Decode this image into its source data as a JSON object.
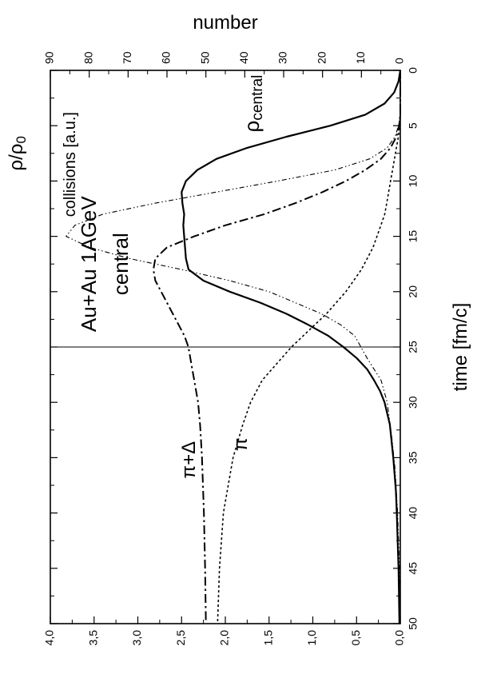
{
  "chart_data": {
    "type": "line",
    "orientation": "rotated-90-cw",
    "x_axis": {
      "label": "time   [fm/c]",
      "range": [
        0,
        50
      ],
      "ticks": [
        "0",
        "5",
        "10",
        "15",
        "20",
        "25",
        "30",
        "35",
        "40",
        "45",
        "50"
      ]
    },
    "y_left_axis": {
      "label": "ρ/ρ",
      "label_sub": "0",
      "range": [
        0,
        4
      ],
      "ticks": [
        "0,0",
        "0,5",
        "1,0",
        "1,5",
        "2,0",
        "2,5",
        "3,0",
        "3,5",
        "4,0"
      ]
    },
    "y_right_axis": {
      "label": "number",
      "range": [
        0,
        90
      ],
      "ticks": [
        "0",
        "10",
        "20",
        "30",
        "40",
        "50",
        "60",
        "70",
        "80",
        "90"
      ]
    },
    "vertical_line_x": 25,
    "annotations": {
      "title_line1": "Au+Au 1AGeV",
      "title_line2": "central",
      "collisions": "collisions [a.u.]",
      "rho_main": "ρ",
      "rho_sub": "central",
      "pi_delta": "π+Δ",
      "pi": "π"
    },
    "series": [
      {
        "style": "solid",
        "axis": "left",
        "x": [
          0,
          1,
          2,
          3,
          4,
          5,
          6,
          7,
          8,
          9,
          10,
          11,
          12,
          13,
          14,
          15,
          16,
          17,
          18,
          19,
          20,
          21,
          22,
          23,
          24,
          25,
          26,
          27,
          28,
          29,
          30,
          32,
          35,
          38,
          40,
          45,
          50
        ],
        "y": [
          0.0,
          0.02,
          0.07,
          0.18,
          0.4,
          0.8,
          1.3,
          1.75,
          2.1,
          2.32,
          2.45,
          2.5,
          2.49,
          2.47,
          2.48,
          2.47,
          2.46,
          2.45,
          2.42,
          2.25,
          1.95,
          1.6,
          1.3,
          1.05,
          0.82,
          0.65,
          0.5,
          0.38,
          0.3,
          0.23,
          0.18,
          0.12,
          0.08,
          0.05,
          0.04,
          0.02,
          0.01
        ]
      },
      {
        "style": "dash-dot-dot",
        "axis": "left",
        "x": [
          0,
          4,
          5,
          6,
          7,
          8,
          9,
          10,
          11,
          12,
          13,
          14,
          15,
          16,
          17,
          18,
          19,
          20,
          21,
          22,
          23,
          24,
          25,
          26,
          27,
          28,
          30,
          33,
          36,
          40,
          45,
          50
        ],
        "y": [
          0.0,
          0.0,
          0.02,
          0.06,
          0.15,
          0.35,
          0.75,
          1.4,
          2.1,
          2.8,
          3.4,
          3.72,
          3.82,
          3.55,
          3.1,
          2.5,
          1.95,
          1.5,
          1.2,
          0.9,
          0.68,
          0.52,
          0.45,
          0.38,
          0.3,
          0.22,
          0.15,
          0.1,
          0.06,
          0.03,
          0.01,
          0.0
        ]
      },
      {
        "style": "dash-dot",
        "axis": "right",
        "x": [
          0,
          4,
          5,
          6,
          7,
          8,
          9,
          10,
          11,
          12,
          13,
          14,
          15,
          16,
          17,
          18,
          19,
          20,
          21,
          22,
          23,
          24,
          25,
          26,
          27,
          28,
          30,
          32,
          35,
          40,
          45,
          50
        ],
        "y": [
          0,
          0,
          0.3,
          1,
          2.5,
          5,
          9,
          14,
          20,
          27,
          35,
          45,
          53,
          60,
          63,
          63.5,
          63,
          61.5,
          60,
          58.5,
          57,
          55.5,
          54.5,
          54,
          53.5,
          53,
          52,
          51.5,
          51,
          50.5,
          50.2,
          50
        ]
      },
      {
        "style": "dotted",
        "axis": "right",
        "x": [
          0,
          4,
          5,
          6,
          7,
          8,
          9,
          10,
          11,
          12,
          13,
          14,
          15,
          16,
          17,
          18,
          19,
          20,
          21,
          22,
          23,
          24,
          25,
          26,
          27,
          28,
          29,
          30,
          32,
          35,
          38,
          40,
          45,
          50
        ],
        "y": [
          0,
          0,
          0.2,
          0.5,
          1,
          1.5,
          2,
          2.5,
          3,
          3.5,
          4,
          5,
          6,
          7,
          8.5,
          10,
          12,
          14,
          16.5,
          19,
          22,
          25,
          28,
          30.5,
          33,
          35.5,
          37,
          38.5,
          40.5,
          43,
          44.5,
          45.5,
          46.5,
          47
        ]
      }
    ]
  }
}
